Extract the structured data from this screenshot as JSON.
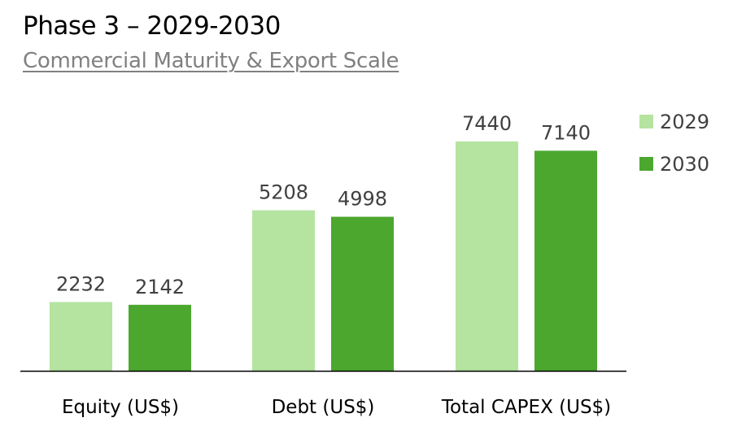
{
  "chart_data": {
    "type": "bar",
    "title": "Phase 3 – 2029-2030",
    "subtitle": "Commercial Maturity & Export Scale",
    "categories": [
      "Equity (US$)",
      "Debt (US$)",
      "Total CAPEX (US$)"
    ],
    "series": [
      {
        "name": "2029",
        "color": "#b5e4a1",
        "values": [
          2232,
          5208,
          7440
        ]
      },
      {
        "name": "2030",
        "color": "#4ca72f",
        "values": [
          2142,
          4998,
          7140
        ]
      }
    ],
    "xlabel": "",
    "ylabel": "",
    "ylim": [
      0,
      7440
    ],
    "grid": false,
    "legend": "right"
  }
}
